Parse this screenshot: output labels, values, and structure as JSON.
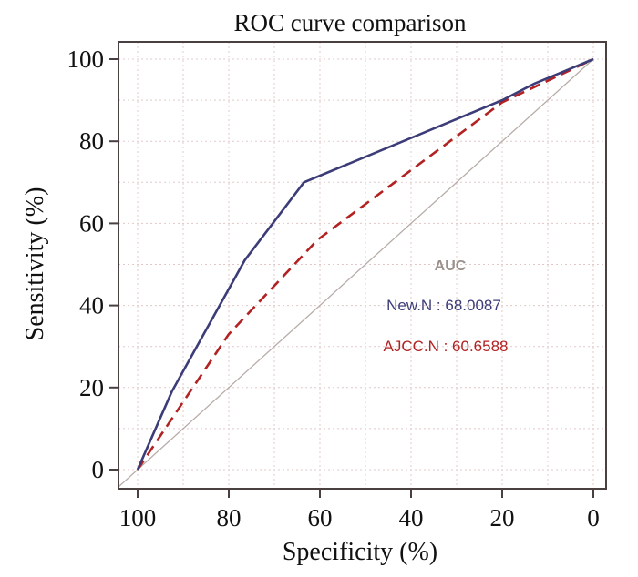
{
  "chart_data": {
    "type": "line",
    "title": "ROC curve comparison",
    "xlabel": "Specificity (%)",
    "ylabel": "Sensitivity (%)",
    "xlim": [
      100,
      0
    ],
    "ylim": [
      0,
      100
    ],
    "x_reversed": true,
    "xticks": [
      100,
      80,
      60,
      40,
      20,
      0
    ],
    "yticks": [
      0,
      20,
      40,
      60,
      80,
      100
    ],
    "grid": true,
    "series": [
      {
        "name": "New.N",
        "style": "solid",
        "color": "#3c3c78",
        "points": [
          [
            100,
            0
          ],
          [
            92.5,
            19
          ],
          [
            76.5,
            51
          ],
          [
            63.5,
            70
          ],
          [
            20,
            90
          ],
          [
            13,
            94
          ],
          [
            0,
            100
          ]
        ]
      },
      {
        "name": "AJCC.N",
        "style": "dashed",
        "color": "#b22222",
        "points": [
          [
            100,
            0
          ],
          [
            80,
            33
          ],
          [
            60.5,
            56
          ],
          [
            20,
            89.5
          ],
          [
            0,
            100
          ]
        ]
      },
      {
        "name": "reference",
        "style": "solid",
        "color": "#b8aca8",
        "points": [
          [
            110,
            -10
          ],
          [
            0,
            100
          ]
        ]
      }
    ],
    "annotations": {
      "heading": "AUC",
      "heading_color": "#9a908c",
      "entries": [
        {
          "label": "New.N : 68.0087",
          "color": "#3c3c78"
        },
        {
          "label": "AJCC.N : 60.6588",
          "color": "#b22222"
        }
      ]
    }
  }
}
